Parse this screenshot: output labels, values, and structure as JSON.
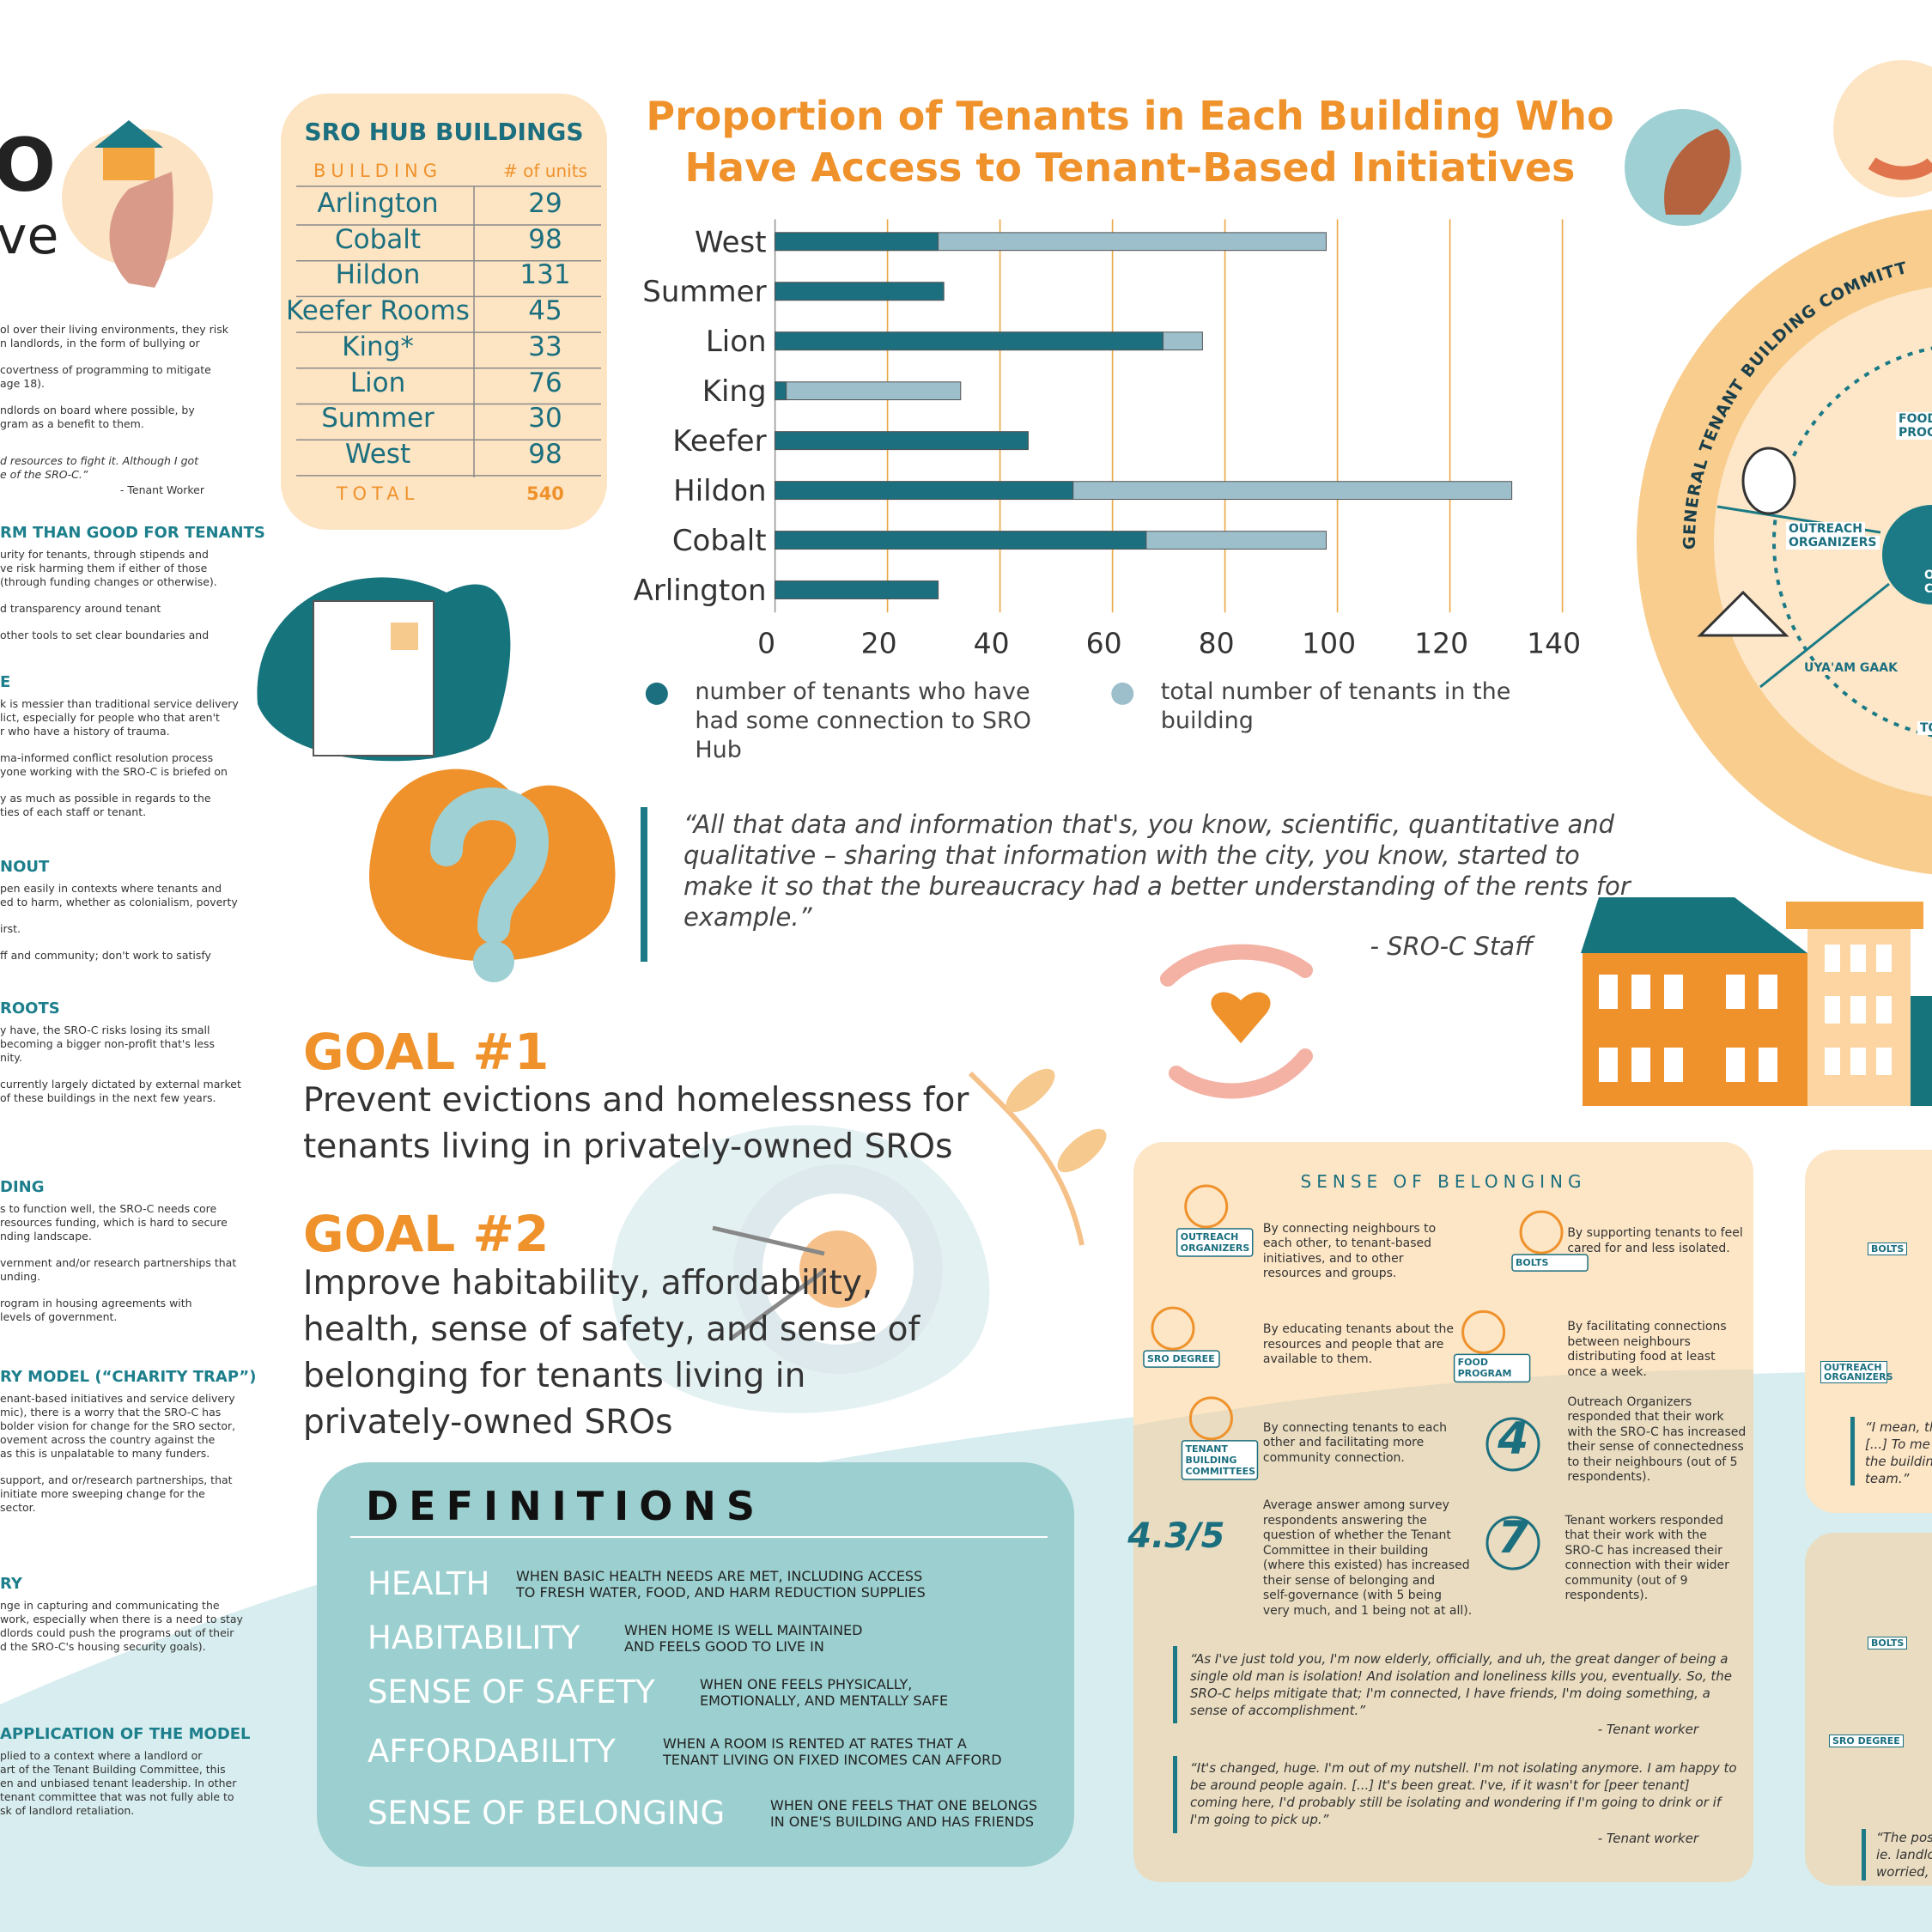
{
  "left_column": {
    "title_fragments": [
      "O",
      "ve"
    ],
    "intro": [
      [
        "ol over their living environments, they risk",
        "n landlords, in the form of bullying or"
      ],
      [
        "covertness of programming to mitigate",
        "age 18)."
      ],
      [
        "ndlords on board where possible, by",
        "gram as a benefit to them."
      ]
    ],
    "intro_quote": [
      "d resources to fight it. Although I got",
      "e of the SRO-C.”"
    ],
    "intro_attribution": "- Tenant Worker",
    "sections": [
      {
        "heading": "RM THAN GOOD FOR TENANTS",
        "paragraphs": [
          [
            "urity for tenants, through stipends and",
            "ve risk harming them if either of those",
            "(through funding changes or otherwise)."
          ],
          [
            "d transparency around tenant"
          ],
          [
            "other tools to set clear boundaries and"
          ]
        ]
      },
      {
        "heading": "E",
        "paragraphs": [
          [
            "k is messier than traditional service delivery",
            "lict, especially for people who that aren't",
            "r who have a history of trauma."
          ],
          [
            "ma-informed conflict resolution process",
            "yone working with the SRO-C is briefed on"
          ],
          [
            "y as much as possible in regards to the",
            "ties of each staff or tenant."
          ]
        ]
      },
      {
        "heading": "NOUT",
        "paragraphs": [
          [
            "pen easily in contexts where tenants and",
            "ed to harm, whether as colonialism, poverty"
          ],
          [
            "irst."
          ],
          [
            "ff and community; don't work to satisfy"
          ]
        ]
      },
      {
        "heading": "ROOTS",
        "paragraphs": [
          [
            "y have, the SRO-C risks losing its small",
            "becoming a bigger non-profit that's less",
            "nity."
          ],
          [
            "currently largely dictated by external market",
            "of these buildings in the next few years."
          ]
        ]
      },
      {
        "heading": "DING",
        "paragraphs": [
          [
            "s to function well, the SRO-C needs core",
            "resources funding, which is hard to secure",
            "nding landscape."
          ],
          [
            "vernment and/or research partnerships that",
            "unding."
          ],
          [
            "rogram in housing agreements with",
            "levels of government."
          ]
        ]
      },
      {
        "heading": "RY MODEL (“CHARITY TRAP”)",
        "paragraphs": [
          [
            "enant-based initiatives and service delivery",
            "mic), there is a worry that the SRO-C has",
            "bolder vision for change for the SRO sector,",
            "ovement across the country against the",
            "as this is unpalatable to many funders."
          ],
          [
            "support, and or/research partnerships, that",
            "initiate more sweeping change for the",
            "sector."
          ]
        ]
      },
      {
        "heading": "RY",
        "paragraphs": [
          [
            "nge in capturing and communicating the",
            "work, especially when there is a need to stay",
            "dlords could push the programs out of their",
            "d the SRO-C's housing security goals)."
          ]
        ]
      },
      {
        "heading": "APPLICATION OF THE MODEL",
        "paragraphs": [
          [
            "plied to a context where a landlord or",
            "art of the Tenant Building Committee, this",
            "en and unbiased tenant leadership. In other",
            "tenant committee that was not fully able to",
            "sk of landlord retaliation."
          ]
        ]
      }
    ]
  },
  "hub_table": {
    "title": "SRO HUB BUILDINGS",
    "columns": [
      "BUILDING",
      "# of units"
    ],
    "rows": [
      [
        "Arlington",
        29
      ],
      [
        "Cobalt",
        98
      ],
      [
        "Hildon",
        131
      ],
      [
        "Keefer Rooms",
        45
      ],
      [
        "King*",
        33
      ],
      [
        "Lion",
        76
      ],
      [
        "Summer",
        30
      ],
      [
        "West",
        98
      ]
    ],
    "total": [
      "TOTAL",
      540
    ]
  },
  "chart_data": {
    "type": "bar",
    "orientation": "horizontal",
    "title": [
      "Proportion of Tenants in Each Building Who",
      "Have Access to Tenant-Based Initiatives"
    ],
    "categories": [
      "West",
      "Summer",
      "Lion",
      "King",
      "Keefer",
      "Hildon",
      "Cobalt",
      "Arlington"
    ],
    "series": [
      {
        "name": "number of tenants who have had some connection to SRO Hub",
        "color": "#1b6f7f",
        "values": [
          29,
          30,
          69,
          2,
          45,
          53,
          66,
          29
        ]
      },
      {
        "name": "total number of tenants in the building",
        "color": "#9dbecb",
        "values": [
          98,
          30,
          76,
          33,
          45,
          131,
          98,
          29
        ]
      }
    ],
    "xlim": [
      0,
      140
    ],
    "xticks": [
      0,
      20,
      40,
      60,
      80,
      100,
      120,
      140
    ],
    "grid": true,
    "grid_color": "#eba845"
  },
  "quote": {
    "lines": [
      "“All that data and information that's, you know, scientific, quantitative and",
      "qualitative – sharing that information with the city, you know, started to",
      "make it so that the bureaucracy had a better understanding of the rents for",
      "example.”"
    ],
    "attribution": "- SRO-C Staff"
  },
  "goals": [
    {
      "label": "GOAL #1",
      "lines": [
        "Prevent evictions and homelessness for",
        "tenants living in privately-owned SROs"
      ]
    },
    {
      "label": "GOAL #2",
      "lines": [
        "Improve habitability, affordability,",
        "health, sense of safety, and sense of",
        "belonging for tenants living in",
        "privately-owned SROs"
      ]
    }
  ],
  "definitions": {
    "title": "DEFINITIONS",
    "items": [
      {
        "term": "HEALTH",
        "lines": [
          "WHEN BASIC HEALTH NEEDS ARE MET,  INCLUDING ACCESS",
          "TO FRESH WATER, FOOD, AND HARM REDUCTION SUPPLIES"
        ]
      },
      {
        "term": "HABITABILITY",
        "lines": [
          "WHEN HOME IS WELL MAINTAINED",
          "AND FEELS GOOD TO LIVE IN"
        ]
      },
      {
        "term": "SENSE OF SAFETY",
        "lines": [
          "WHEN ONE FEELS PHYSICALLY,",
          "EMOTIONALLY, AND MENTALLY SAFE"
        ]
      },
      {
        "term": "AFFORDABILITY",
        "lines": [
          "WHEN  A ROOM IS RENTED AT RATES THAT A",
          "TENANT LIVING ON FIXED INCOMES CAN AFFORD"
        ]
      },
      {
        "term": "SENSE OF BELONGING",
        "lines": [
          "WHEN ONE FEELS THAT ONE BELONGS",
          "IN ONE'S BUILDING AND HAS FRIENDS"
        ]
      }
    ]
  },
  "belonging": {
    "title": "SENSE OF BELONGING",
    "items": [
      {
        "icon_label": [
          "OUTREACH",
          "ORGANIZERS"
        ],
        "lines": [
          "By connecting neighbours to",
          "each other, to tenant-based",
          "initiatives, and to other",
          "resources and groups."
        ]
      },
      {
        "icon_label": [
          "BOLTS"
        ],
        "lines": [
          "By supporting tenants to feel",
          "cared for and less isolated."
        ]
      },
      {
        "icon_label": [
          "SRO DEGREE"
        ],
        "lines": [
          "By educating tenants about the",
          "resources and people that are",
          "available to them."
        ]
      },
      {
        "icon_label": [
          "FOOD",
          "PROGRAM"
        ],
        "lines": [
          "By facilitating connections",
          "between neighbours",
          "distributing food at least",
          "once a week."
        ]
      },
      {
        "icon_label": [
          "TENANT",
          "BUILDING",
          "COMMITTEES"
        ],
        "lines": [
          "By connecting tenants to each",
          "other and facilitating more",
          "community connection."
        ]
      },
      {
        "stat": "4",
        "lines": [
          "Outreach Organizers",
          "responded that their work",
          "with the SRO-C has increased",
          "their sense of connectedness",
          "to their neighbours (out of 5",
          "respondents)."
        ]
      },
      {
        "stat": "4.3/5",
        "lines": [
          "Average answer among survey",
          "respondents answering the",
          "question of whether the Tenant",
          "Committee in their building",
          "(where this existed) has increased",
          "their sense of belonging and",
          "self-governance (with 5 being",
          "very much, and 1 being not at all)."
        ]
      },
      {
        "stat": "7",
        "lines": [
          "Tenant workers responded",
          "that their work with the",
          "SRO-C has increased their",
          "connection with their wider",
          "community (out of 9",
          "respondents)."
        ]
      }
    ],
    "quotes": [
      {
        "lines": [
          "“As I've just told you, I'm now elderly, officially, and uh, the great danger of being a",
          "single old man is isolation! And isolation and loneliness kills you, eventually. So, the",
          "SRO-C helps mitigate that; I'm connected, I have friends, I'm doing something, a",
          "sense of accomplishment.”"
        ],
        "attribution": "- Tenant worker"
      },
      {
        "lines": [
          "“It's changed, huge. I'm out of my nutshell. I'm not isolating anymore. I am happy to",
          "be around people again. [...] It's been great. I've, if it wasn't for [peer tenant]",
          "coming here, I'd probably still be isolating and wondering if I'm going to drink or if",
          "I'm going to pick up.”"
        ],
        "attribution": "- Tenant worker"
      }
    ]
  },
  "diagram": {
    "ring_label": "GENERAL TENANT BUILDING COMMITTEE",
    "labels": [
      [
        "OUTREACH",
        "ORGANIZERS"
      ],
      [
        "UYA'AM GAAK"
      ],
      [
        "FOOD",
        "PROG"
      ],
      [
        "TORO"
      ],
      [
        "O",
        "C"
      ]
    ]
  },
  "right_panels": {
    "top": {
      "icon_labels": [
        "BOLTS",
        "OUTREACH ORGANIZERS"
      ],
      "quote": [
        "“I mean, th",
        "[...] To me a",
        "the buildin",
        "team.”"
      ]
    },
    "bottom": {
      "icon_labels": [
        "BOLTS",
        "SRO DEGREE"
      ],
      "quote": [
        "“The pos",
        "ie. landlo",
        "worried,"
      ]
    }
  }
}
